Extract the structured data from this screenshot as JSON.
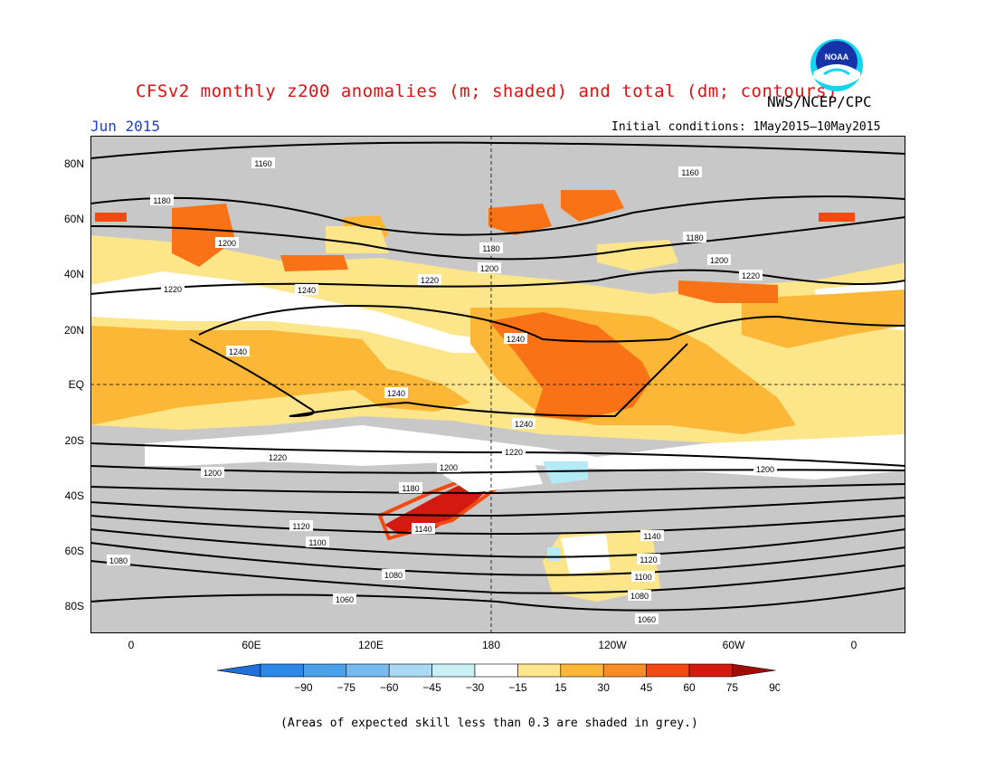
{
  "header": {
    "title": "CFSv2 monthly z200 anomalies (m; shaded) and total (dm; contours)",
    "agency": "NWS/NCEP/CPC",
    "month": "Jun 2015",
    "initial_conditions": "Initial conditions: 1May2015–10May2015",
    "logo_text": "NOAA"
  },
  "map": {
    "lat_labels": [
      "80N",
      "60N",
      "40N",
      "20N",
      "EQ",
      "20S",
      "40S",
      "60S",
      "80S"
    ],
    "lon_labels": [
      "0",
      "60E",
      "120E",
      "180",
      "120W",
      "60W",
      "0"
    ],
    "colors": {
      "grey": "#c8c8c8",
      "neutral": "#ffffff",
      "c15_30": "#fde58a",
      "c30_45": "#fbb735",
      "c45_60": "#f97316",
      "c60_75": "#f24a10",
      "c75_90": "#d41a10",
      "b_15_30": "#b4eaf5",
      "b_30_45": "#9fd0f0"
    },
    "contours": [
      {
        "label": "1160",
        "positions": [
          "1160",
          "1160"
        ]
      },
      {
        "label": "1180",
        "positions": [
          "1180",
          "1180",
          "1180",
          "1180"
        ]
      },
      {
        "label": "1200",
        "positions": [
          "1200",
          "1200",
          "1200",
          "1200",
          "1200",
          "1200"
        ]
      },
      {
        "label": "1220",
        "positions": [
          "1220",
          "1220",
          "1220",
          "1220",
          "1220"
        ]
      },
      {
        "label": "1240",
        "positions": [
          "1240",
          "1240",
          "1240",
          "1240",
          "1240"
        ]
      },
      {
        "label": "1140",
        "positions": [
          "1140",
          "1140"
        ]
      },
      {
        "label": "1120",
        "positions": [
          "1120",
          "1120"
        ]
      },
      {
        "label": "1100",
        "positions": [
          "1100",
          "1100"
        ]
      },
      {
        "label": "1080",
        "positions": [
          "1080",
          "1080",
          "1080"
        ]
      },
      {
        "label": "1060",
        "positions": [
          "1060",
          "1060"
        ]
      }
    ]
  },
  "colorbar": {
    "labels": [
      "−90",
      "−75",
      "−60",
      "−45",
      "−30",
      "−15",
      "15",
      "30",
      "45",
      "60",
      "75",
      "90"
    ],
    "colors": [
      "#1f6fd8",
      "#2a88e8",
      "#4aa2ec",
      "#75baf0",
      "#a9d9f3",
      "#c9f0f4",
      "#ffffff",
      "#fde58a",
      "#fbb735",
      "#f98c25",
      "#f24a10",
      "#d41a10",
      "#a00c08"
    ]
  },
  "footer": "(Areas of expected skill less than 0.3 are shaded in grey.)"
}
